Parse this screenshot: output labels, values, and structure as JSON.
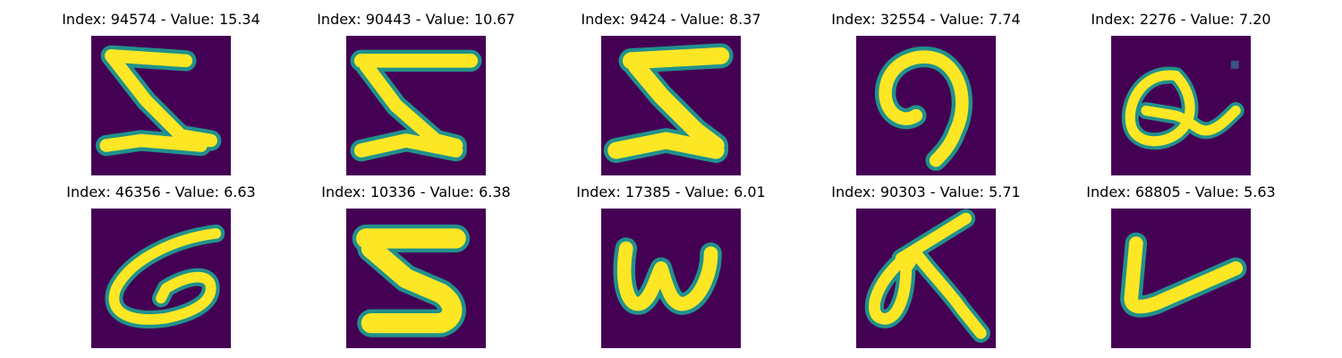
{
  "figure": {
    "colors": {
      "background": "#440154",
      "stroke_core": "#fde725",
      "stroke_edge": "#21918c"
    },
    "panels": [
      {
        "title": "Index: 94574 - Value: 15.34",
        "glyph": "5-like-zigzag"
      },
      {
        "title": "Index: 90443 - Value: 10.67",
        "glyph": "5-like-zigzag"
      },
      {
        "title": "Index: 9424 - Value: 8.37",
        "glyph": "5-like-zigzag"
      },
      {
        "title": "Index: 32554 - Value: 7.74",
        "glyph": "9-like-curl"
      },
      {
        "title": "Index: 2276 - Value: 7.20",
        "glyph": "a-like-loop"
      },
      {
        "title": "Index: 46356 - Value: 6.63",
        "glyph": "G-like-curve"
      },
      {
        "title": "Index: 10336 - Value: 6.38",
        "glyph": "5-like-zigzag"
      },
      {
        "title": "Index: 17385 - Value: 6.01",
        "glyph": "w-letter"
      },
      {
        "title": "Index: 90303 - Value: 5.71",
        "glyph": "script-a-letter"
      },
      {
        "title": "Index: 68805 - Value: 5.63",
        "glyph": "L-like-check"
      }
    ]
  }
}
